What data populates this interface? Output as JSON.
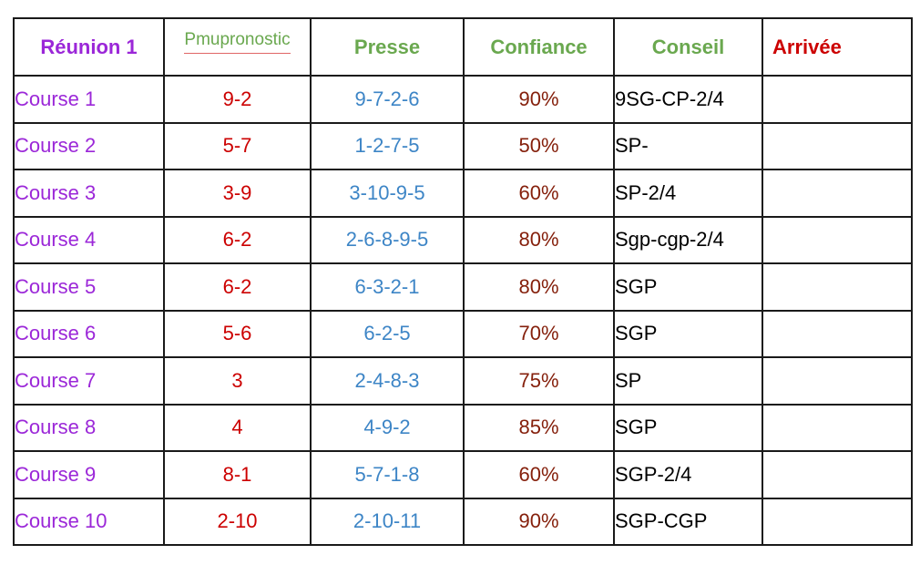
{
  "header": {
    "reunion": "Réunion 1",
    "pmupronostic": "Pmupronostic",
    "presse": "Presse",
    "confiance": "Confiance",
    "conseil": "Conseil",
    "arrivee": "Arrivée"
  },
  "rows": [
    {
      "course": "Course 1",
      "pmu": "9-2",
      "presse": "9-7-2-6",
      "confiance": "90%",
      "conseil": "9SG-CP-2/4",
      "arrivee": ""
    },
    {
      "course": "Course 2",
      "pmu": "5-7",
      "presse": "1-2-7-5",
      "confiance": "50%",
      "conseil": "SP-",
      "arrivee": ""
    },
    {
      "course": "Course 3",
      "pmu": "3-9",
      "presse": "3-10-9-5",
      "confiance": "60%",
      "conseil": "SP-2/4",
      "arrivee": ""
    },
    {
      "course": "Course 4",
      "pmu": "6-2",
      "presse": "2-6-8-9-5",
      "confiance": "80%",
      "conseil": "Sgp-cgp-2/4",
      "arrivee": ""
    },
    {
      "course": "Course 5",
      "pmu": "6-2",
      "presse": "6-3-2-1",
      "confiance": "80%",
      "conseil": "SGP",
      "arrivee": ""
    },
    {
      "course": "Course 6",
      "pmu": "5-6",
      "presse": "6-2-5",
      "confiance": "70%",
      "conseil": "SGP",
      "arrivee": ""
    },
    {
      "course": "Course 7",
      "pmu": "3",
      "presse": "2-4-8-3",
      "confiance": "75%",
      "conseil": "SP",
      "arrivee": ""
    },
    {
      "course": "Course 8",
      "pmu": "4",
      "presse": "4-9-2",
      "confiance": "85%",
      "conseil": "SGP",
      "arrivee": ""
    },
    {
      "course": "Course 9",
      "pmu": "8-1",
      "presse": "5-7-1-8",
      "confiance": "60%",
      "conseil": "SGP-2/4",
      "arrivee": ""
    },
    {
      "course": "Course 10",
      "pmu": "2-10",
      "presse": "2-10-11",
      "confiance": "90%",
      "conseil": "SGP-CGP",
      "arrivee": ""
    }
  ],
  "colors": {
    "purple": "#9b27d8",
    "green": "#6aa84f",
    "red": "#cc0000",
    "blue": "#3d85c6",
    "darkred": "#85200c"
  }
}
